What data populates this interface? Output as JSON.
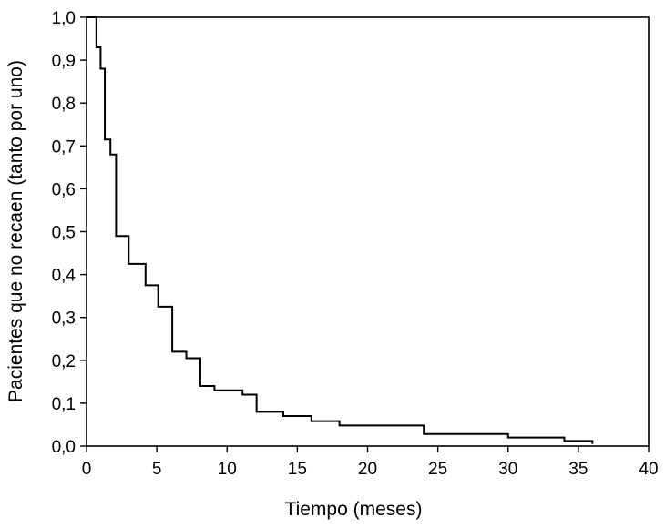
{
  "chart_data": {
    "type": "line",
    "step": true,
    "title": "",
    "xlabel": "Tiempo (meses)",
    "ylabel": "Pacientes que no recaen (tanto por uno)",
    "xlim": [
      0,
      40
    ],
    "ylim": [
      0,
      1
    ],
    "x_ticks": [
      0,
      5,
      10,
      15,
      20,
      25,
      30,
      35,
      40
    ],
    "x_tick_labels": [
      "0",
      "5",
      "10",
      "15",
      "20",
      "25",
      "30",
      "35",
      "40"
    ],
    "y_ticks": [
      0,
      0.1,
      0.2,
      0.3,
      0.4,
      0.5,
      0.6,
      0.7,
      0.8,
      0.9,
      1.0
    ],
    "y_tick_labels": [
      "0,0",
      "0,1",
      "0,2",
      "0,3",
      "0,4",
      "0,5",
      "0,6",
      "0,7",
      "0,8",
      "0,9",
      "1,0"
    ],
    "grid": false,
    "legend": "none",
    "series": [
      {
        "x": [
          0,
          0.7,
          1.0,
          1.3,
          1.7,
          2.1,
          3.0,
          4.2,
          5.1,
          6.1,
          7.1,
          8.1,
          9.1,
          11.1,
          12.1,
          14.0,
          16.0,
          18.0,
          24.0,
          30.0,
          34.0,
          36.0
        ],
        "y": [
          1.0,
          0.93,
          0.88,
          0.715,
          0.68,
          0.49,
          0.425,
          0.375,
          0.325,
          0.22,
          0.205,
          0.14,
          0.13,
          0.12,
          0.08,
          0.07,
          0.058,
          0.048,
          0.028,
          0.02,
          0.012,
          0.005
        ]
      }
    ]
  }
}
